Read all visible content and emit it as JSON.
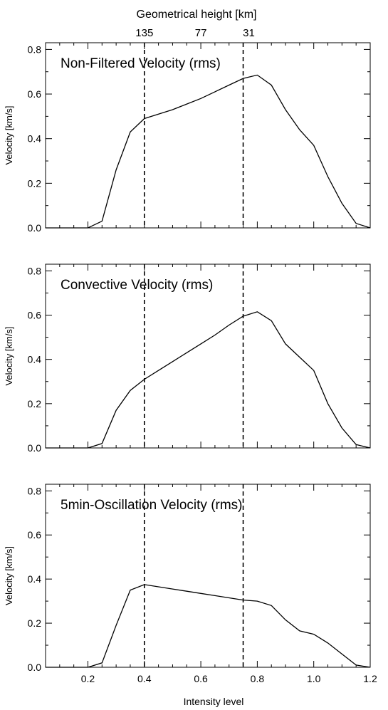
{
  "figure": {
    "top_axis_title": "Geometrical height [km]",
    "top_ticks": [
      {
        "x": 0.4,
        "label": "135"
      },
      {
        "x": 0.6,
        "label": "77"
      },
      {
        "x": 0.77,
        "label": "31"
      }
    ],
    "xlabel": "Intensity level",
    "ylabel": "Velocity [km/s]",
    "vertical_lines": [
      0.4,
      0.75
    ]
  },
  "chart_data": [
    {
      "type": "line",
      "title": "Non-Filtered Velocity (rms)",
      "xlim": [
        0.05,
        1.2
      ],
      "ylim": [
        0,
        0.83
      ],
      "xticks": [
        "0.2",
        "0.4",
        "0.6",
        "0.8",
        "1.0",
        "1.2"
      ],
      "yticks": [
        "0.0",
        "0.2",
        "0.4",
        "0.6",
        "0.8"
      ],
      "x": [
        0.05,
        0.1,
        0.15,
        0.2,
        0.25,
        0.3,
        0.35,
        0.4,
        0.45,
        0.5,
        0.55,
        0.6,
        0.65,
        0.7,
        0.75,
        0.8,
        0.85,
        0.9,
        0.95,
        1.0,
        1.05,
        1.1,
        1.15,
        1.2
      ],
      "y": [
        0.0,
        0.0,
        0.0,
        0.0,
        0.03,
        0.26,
        0.43,
        0.49,
        0.51,
        0.53,
        0.555,
        0.58,
        0.61,
        0.64,
        0.67,
        0.685,
        0.64,
        0.53,
        0.44,
        0.37,
        0.23,
        0.11,
        0.02,
        0.0
      ]
    },
    {
      "type": "line",
      "title": "Convective Velocity (rms)",
      "xlim": [
        0.05,
        1.2
      ],
      "ylim": [
        0,
        0.83
      ],
      "xticks": [
        "0.2",
        "0.4",
        "0.6",
        "0.8",
        "1.0",
        "1.2"
      ],
      "yticks": [
        "0.0",
        "0.2",
        "0.4",
        "0.6",
        "0.8"
      ],
      "x": [
        0.05,
        0.1,
        0.15,
        0.2,
        0.25,
        0.3,
        0.35,
        0.4,
        0.45,
        0.5,
        0.55,
        0.6,
        0.65,
        0.7,
        0.75,
        0.8,
        0.85,
        0.9,
        0.95,
        1.0,
        1.05,
        1.1,
        1.15,
        1.2
      ],
      "y": [
        0.0,
        0.0,
        0.0,
        0.0,
        0.02,
        0.17,
        0.26,
        0.31,
        0.35,
        0.39,
        0.43,
        0.47,
        0.51,
        0.555,
        0.595,
        0.615,
        0.575,
        0.47,
        0.41,
        0.35,
        0.2,
        0.09,
        0.015,
        0.0
      ]
    },
    {
      "type": "line",
      "title": "5min-Oscillation Velocity (rms)",
      "xlim": [
        0.05,
        1.2
      ],
      "ylim": [
        0,
        0.83
      ],
      "xticks": [
        "0.2",
        "0.4",
        "0.6",
        "0.8",
        "1.0",
        "1.2"
      ],
      "yticks": [
        "0.0",
        "0.2",
        "0.4",
        "0.6",
        "0.8"
      ],
      "x": [
        0.05,
        0.1,
        0.15,
        0.2,
        0.25,
        0.3,
        0.35,
        0.4,
        0.45,
        0.5,
        0.55,
        0.6,
        0.65,
        0.7,
        0.75,
        0.8,
        0.85,
        0.9,
        0.95,
        1.0,
        1.05,
        1.1,
        1.15,
        1.2
      ],
      "y": [
        0.0,
        0.0,
        0.0,
        0.0,
        0.02,
        0.19,
        0.35,
        0.375,
        0.365,
        0.355,
        0.345,
        0.335,
        0.325,
        0.315,
        0.305,
        0.3,
        0.28,
        0.215,
        0.165,
        0.15,
        0.11,
        0.06,
        0.01,
        0.0
      ]
    }
  ]
}
